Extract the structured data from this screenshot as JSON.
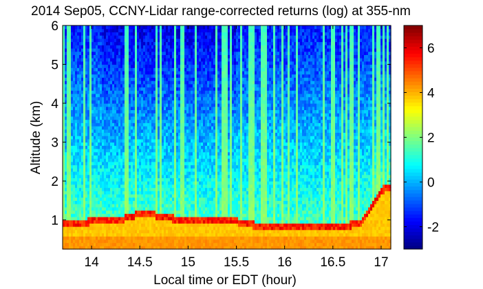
{
  "chart_data": {
    "type": "heatmap",
    "title": "2014 Sep05, CCNY-Lidar range-corrected returns (log) at 355-nm",
    "xlabel": "Local time or EDT (hour)",
    "ylabel": "Altitude (km)",
    "xlim": [
      13.7,
      17.1
    ],
    "ylim": [
      0.25,
      6.0
    ],
    "x_ticks": [
      "14",
      "14.5",
      "15",
      "15.5",
      "16",
      "16.5",
      "17"
    ],
    "x_tick_values": [
      14,
      14.5,
      15,
      15.5,
      16,
      16.5,
      17
    ],
    "y_ticks": [
      "1",
      "2",
      "3",
      "4",
      "5",
      "6"
    ],
    "y_tick_values": [
      1,
      2,
      3,
      4,
      5,
      6
    ],
    "colorbar": {
      "range": [
        -3,
        7
      ],
      "ticks": [
        "-2",
        "0",
        "2",
        "4",
        "6"
      ],
      "tick_values": [
        -2,
        0,
        2,
        4,
        6
      ],
      "colormap": "jet"
    },
    "features": {
      "surface_layer_top_km": 0.55,
      "boundary_layer_top_km": [
        [
          13.7,
          0.95
        ],
        [
          14.0,
          1.0
        ],
        [
          14.3,
          1.05
        ],
        [
          14.5,
          1.2
        ],
        [
          14.7,
          1.15
        ],
        [
          15.0,
          1.0
        ],
        [
          15.3,
          1.0
        ],
        [
          15.5,
          1.0
        ],
        [
          15.7,
          0.9
        ],
        [
          16.0,
          0.9
        ],
        [
          16.3,
          0.85
        ],
        [
          16.5,
          0.85
        ],
        [
          16.8,
          0.95
        ],
        [
          17.0,
          1.8
        ],
        [
          17.1,
          1.9
        ]
      ]
    }
  },
  "colors": {
    "background": "#ffffff",
    "axis": "#000000"
  }
}
